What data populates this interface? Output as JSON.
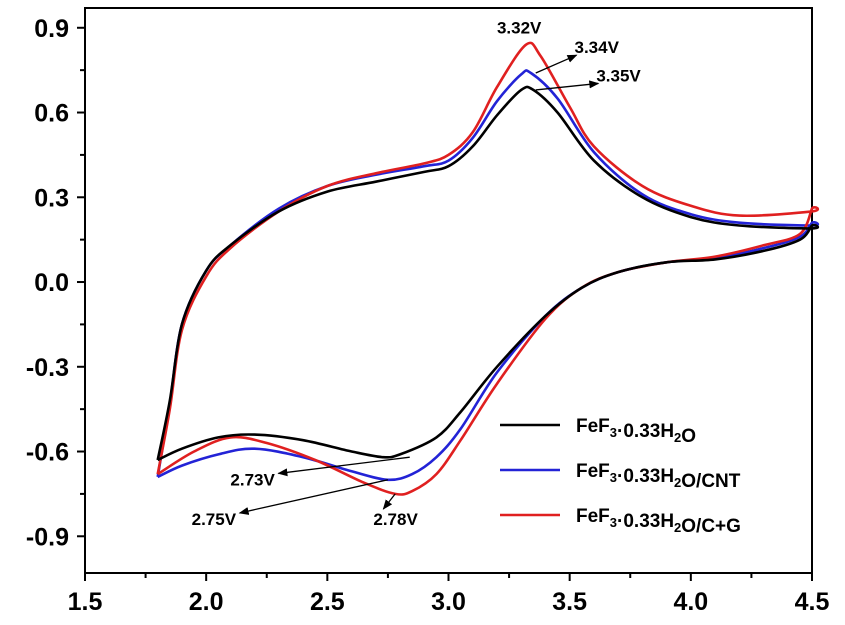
{
  "chart_data": {
    "type": "line",
    "title": "",
    "xlabel": "",
    "ylabel": "",
    "xlim": [
      1.5,
      4.5
    ],
    "ylim": [
      -1.03,
      0.97
    ],
    "x_ticks": [
      "1.5",
      "2.0",
      "2.5",
      "3.0",
      "3.5",
      "4.0",
      "4.5"
    ],
    "y_ticks": [
      "0.9",
      "0.6",
      "0.3",
      "0.0",
      "-0.3",
      "-0.6",
      "-0.9"
    ],
    "grid": false,
    "legend_position": "bottom-right",
    "series": [
      {
        "name": "FeF3·0.33H2O",
        "legend": {
          "pre": "FeF",
          "sub1": "3",
          "mid": "·0.33H",
          "sub2": "2",
          "post": "O"
        },
        "color": "#000000",
        "points": [
          [
            1.8,
            -0.63
          ],
          [
            1.85,
            -0.42
          ],
          [
            1.9,
            -0.15
          ],
          [
            2.0,
            0.04
          ],
          [
            2.1,
            0.13
          ],
          [
            2.3,
            0.25
          ],
          [
            2.5,
            0.32
          ],
          [
            2.7,
            0.355
          ],
          [
            2.9,
            0.39
          ],
          [
            3.0,
            0.41
          ],
          [
            3.1,
            0.48
          ],
          [
            3.2,
            0.59
          ],
          [
            3.3,
            0.68
          ],
          [
            3.35,
            0.68
          ],
          [
            3.45,
            0.6
          ],
          [
            3.6,
            0.43
          ],
          [
            3.8,
            0.3
          ],
          [
            4.0,
            0.23
          ],
          [
            4.2,
            0.2
          ],
          [
            4.5,
            0.19
          ],
          [
            4.5,
            0.2
          ],
          [
            4.45,
            0.15
          ],
          [
            4.3,
            0.11
          ],
          [
            4.1,
            0.08
          ],
          [
            3.9,
            0.07
          ],
          [
            3.7,
            0.035
          ],
          [
            3.55,
            -0.02
          ],
          [
            3.4,
            -0.12
          ],
          [
            3.2,
            -0.3
          ],
          [
            3.05,
            -0.46
          ],
          [
            2.95,
            -0.55
          ],
          [
            2.8,
            -0.61
          ],
          [
            2.73,
            -0.62
          ],
          [
            2.6,
            -0.6
          ],
          [
            2.4,
            -0.56
          ],
          [
            2.2,
            -0.54
          ],
          [
            2.05,
            -0.55
          ],
          [
            1.9,
            -0.59
          ],
          [
            1.8,
            -0.63
          ]
        ]
      },
      {
        "name": "FeF3·0.33H2O/CNT",
        "legend": {
          "pre": "FeF",
          "sub1": "3",
          "mid": "·0.33H",
          "sub2": "2",
          "post": "O/CNT"
        },
        "color": "#2323d6",
        "points": [
          [
            1.8,
            -0.69
          ],
          [
            1.85,
            -0.43
          ],
          [
            1.9,
            -0.15
          ],
          [
            2.0,
            0.04
          ],
          [
            2.1,
            0.13
          ],
          [
            2.3,
            0.26
          ],
          [
            2.5,
            0.34
          ],
          [
            2.7,
            0.38
          ],
          [
            2.9,
            0.41
          ],
          [
            3.0,
            0.43
          ],
          [
            3.1,
            0.51
          ],
          [
            3.2,
            0.64
          ],
          [
            3.3,
            0.735
          ],
          [
            3.34,
            0.74
          ],
          [
            3.45,
            0.65
          ],
          [
            3.6,
            0.46
          ],
          [
            3.8,
            0.31
          ],
          [
            4.0,
            0.24
          ],
          [
            4.2,
            0.21
          ],
          [
            4.5,
            0.2
          ],
          [
            4.5,
            0.21
          ],
          [
            4.45,
            0.16
          ],
          [
            4.3,
            0.12
          ],
          [
            4.1,
            0.085
          ],
          [
            3.9,
            0.07
          ],
          [
            3.7,
            0.035
          ],
          [
            3.55,
            -0.02
          ],
          [
            3.4,
            -0.12
          ],
          [
            3.2,
            -0.32
          ],
          [
            3.05,
            -0.52
          ],
          [
            2.95,
            -0.62
          ],
          [
            2.85,
            -0.68
          ],
          [
            2.75,
            -0.7
          ],
          [
            2.6,
            -0.67
          ],
          [
            2.4,
            -0.62
          ],
          [
            2.2,
            -0.59
          ],
          [
            2.05,
            -0.61
          ],
          [
            1.9,
            -0.65
          ],
          [
            1.8,
            -0.69
          ]
        ]
      },
      {
        "name": "FeF3·0.33H2O/C+G",
        "legend": {
          "pre": "FeF",
          "sub1": "3",
          "mid": "·0.33H",
          "sub2": "2",
          "post": "O/C+G"
        },
        "color": "#e02020",
        "points": [
          [
            1.8,
            -0.68
          ],
          [
            1.85,
            -0.45
          ],
          [
            1.9,
            -0.17
          ],
          [
            2.0,
            0.02
          ],
          [
            2.1,
            0.12
          ],
          [
            2.3,
            0.25
          ],
          [
            2.5,
            0.34
          ],
          [
            2.7,
            0.385
          ],
          [
            2.9,
            0.42
          ],
          [
            3.0,
            0.45
          ],
          [
            3.1,
            0.53
          ],
          [
            3.2,
            0.69
          ],
          [
            3.32,
            0.84
          ],
          [
            3.38,
            0.8
          ],
          [
            3.5,
            0.62
          ],
          [
            3.6,
            0.48
          ],
          [
            3.8,
            0.34
          ],
          [
            4.0,
            0.27
          ],
          [
            4.2,
            0.235
          ],
          [
            4.5,
            0.25
          ],
          [
            4.5,
            0.26
          ],
          [
            4.45,
            0.17
          ],
          [
            4.3,
            0.13
          ],
          [
            4.1,
            0.09
          ],
          [
            3.9,
            0.07
          ],
          [
            3.7,
            0.035
          ],
          [
            3.55,
            -0.02
          ],
          [
            3.4,
            -0.13
          ],
          [
            3.2,
            -0.36
          ],
          [
            3.05,
            -0.56
          ],
          [
            2.95,
            -0.68
          ],
          [
            2.85,
            -0.74
          ],
          [
            2.78,
            -0.75
          ],
          [
            2.65,
            -0.71
          ],
          [
            2.45,
            -0.63
          ],
          [
            2.25,
            -0.57
          ],
          [
            2.1,
            -0.55
          ],
          [
            1.95,
            -0.6
          ],
          [
            1.8,
            -0.68
          ]
        ]
      }
    ],
    "annotations": [
      {
        "text": "3.32V",
        "tx": 3.2,
        "ty": 0.88,
        "ax": 3.32,
        "ay": 0.84,
        "arrow": false
      },
      {
        "text": "3.34V",
        "tx": 3.52,
        "ty": 0.81,
        "ax": 3.36,
        "ay": 0.74,
        "arrow": true
      },
      {
        "text": "3.35V",
        "tx": 3.61,
        "ty": 0.71,
        "ax": 3.36,
        "ay": 0.68,
        "arrow": true
      },
      {
        "text": "2.73V",
        "tx": 2.1,
        "ty": -0.72,
        "ax": 2.84,
        "ay": -0.62,
        "arrow": true
      },
      {
        "text": "2.75V",
        "tx": 1.94,
        "ty": -0.86,
        "ax": 2.75,
        "ay": -0.7,
        "arrow": true
      },
      {
        "text": "2.78V",
        "tx": 2.69,
        "ty": -0.86,
        "ax": 2.78,
        "ay": -0.75,
        "arrow": true
      }
    ]
  }
}
